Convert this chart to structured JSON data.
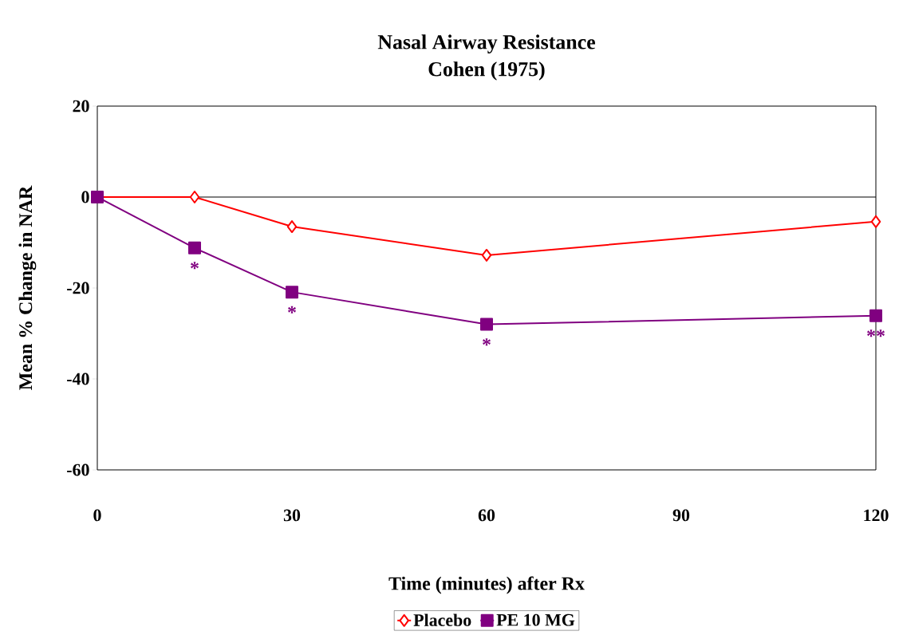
{
  "chart_data": {
    "type": "line",
    "title": "Nasal Airway Resistance",
    "subtitle": "Cohen (1975)",
    "xlabel": "Time (minutes) after Rx",
    "ylabel": "Mean % Change in NAR",
    "series": [
      {
        "name": "Placebo",
        "color": "#ff0000",
        "marker": "diamond",
        "x": [
          0,
          15,
          30,
          60,
          120
        ],
        "values": [
          0,
          0,
          -6.5,
          -12.8,
          -5.4
        ]
      },
      {
        "name": "PE 10 MG",
        "color": "#800080",
        "marker": "square",
        "x": [
          0,
          15,
          30,
          60,
          120
        ],
        "values": [
          0,
          -11.2,
          -20.9,
          -28,
          -26.1
        ]
      }
    ],
    "xlim": [
      0,
      120
    ],
    "xticks": [
      0,
      30,
      60,
      90,
      120
    ],
    "ylim": [
      -60,
      20
    ],
    "yticks": [
      -60,
      -40,
      -20,
      0,
      20
    ],
    "ref_lines": [
      {
        "axis": "y",
        "value": 0,
        "color": "#000000"
      }
    ],
    "annotations": [
      {
        "text": "*",
        "x": 15,
        "y": -11.2
      },
      {
        "text": "*",
        "x": 30,
        "y": -20.9
      },
      {
        "text": "*",
        "x": 60,
        "y": -28
      },
      {
        "text": "**",
        "x": 120,
        "y": -26.1
      }
    ],
    "legend": "bottom",
    "grid": false,
    "line_style": "solid"
  }
}
